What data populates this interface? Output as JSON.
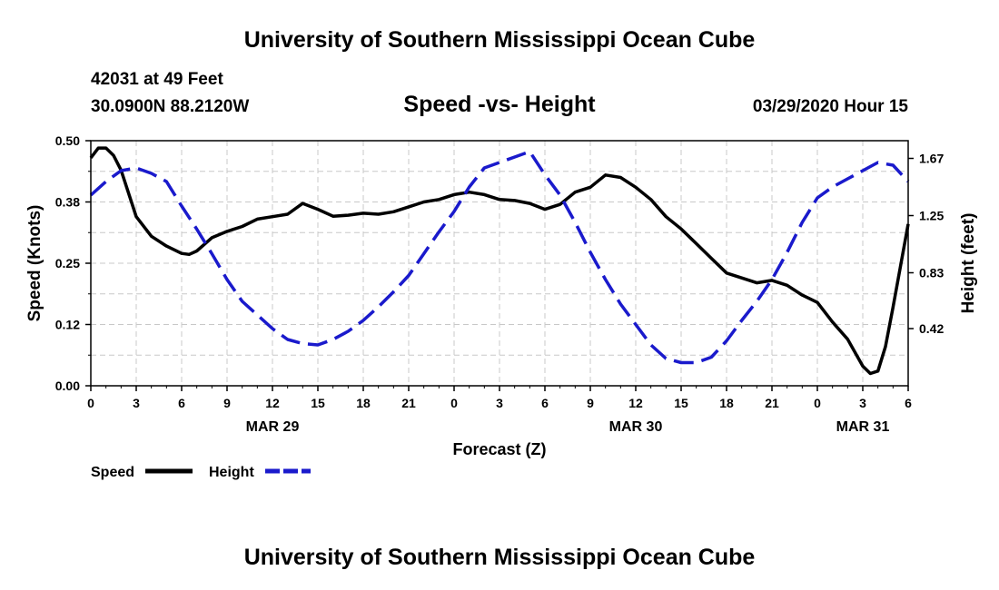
{
  "page": {
    "title_top": "University of Southern Mississippi Ocean Cube",
    "title_bottom": "University of Southern Mississippi Ocean Cube",
    "station": "42031 at 49 Feet",
    "coords": "30.0900N 88.2120W",
    "chart_title": "Speed -vs- Height",
    "datetime": "03/29/2020 Hour 15"
  },
  "colors": {
    "speed": "#000000",
    "height": "#1a1acc",
    "grid": "#c8c8c8"
  },
  "chart_data": {
    "type": "line",
    "title": "Speed -vs- Height",
    "xlabel": "Forecast (Z)",
    "ylabel": "Speed (Knots)",
    "y2label": "Height (feet)",
    "xlim": [
      0,
      54
    ],
    "ylim": [
      0,
      0.5
    ],
    "y2lim": [
      0,
      1.8
    ],
    "x_ticks": [
      0,
      3,
      6,
      9,
      12,
      15,
      18,
      21,
      24,
      27,
      30,
      33,
      36,
      39,
      42,
      45,
      48,
      51,
      54
    ],
    "x_tick_labels": [
      "0",
      "3",
      "6",
      "9",
      "12",
      "15",
      "18",
      "21",
      "0",
      "3",
      "6",
      "9",
      "12",
      "15",
      "18",
      "21",
      "0",
      "3",
      "6"
    ],
    "date_labels": [
      {
        "x": 12,
        "text": "MAR 29"
      },
      {
        "x": 36,
        "text": "MAR 30"
      },
      {
        "x": 51,
        "text": "MAR 31"
      }
    ],
    "y_ticks": [
      0.0,
      0.125,
      0.25,
      0.375,
      0.5
    ],
    "y_tick_labels": [
      "0.00",
      "0.12",
      "0.25",
      "0.38",
      "0.50"
    ],
    "y2_ticks": [
      0.42,
      0.83,
      1.25,
      1.67
    ],
    "y2_tick_labels": [
      "0.42",
      "0.83",
      "1.25",
      "1.67"
    ],
    "grid": true,
    "legend": {
      "position": "bottom-left",
      "entries": [
        "Speed",
        "Height"
      ]
    },
    "series": [
      {
        "name": "Speed",
        "axis": "left",
        "style": "solid",
        "x": [
          0,
          0.5,
          1,
          1.5,
          2,
          3,
          4,
          5,
          6,
          6.5,
          7,
          8,
          9,
          10,
          11,
          12,
          13,
          14,
          15,
          16,
          17,
          18,
          19,
          20,
          21,
          22,
          23,
          24,
          25,
          26,
          27,
          28,
          29,
          30,
          31,
          32,
          33,
          34,
          35,
          36,
          37,
          38,
          39,
          40,
          41,
          42,
          43,
          44,
          45,
          46,
          47,
          48,
          49,
          50,
          51,
          51.5,
          52,
          52.5,
          53,
          54
        ],
        "values": [
          0.465,
          0.485,
          0.485,
          0.47,
          0.44,
          0.345,
          0.305,
          0.285,
          0.27,
          0.268,
          0.275,
          0.302,
          0.315,
          0.325,
          0.34,
          0.345,
          0.35,
          0.372,
          0.36,
          0.346,
          0.348,
          0.352,
          0.35,
          0.355,
          0.365,
          0.375,
          0.38,
          0.39,
          0.395,
          0.39,
          0.38,
          0.378,
          0.372,
          0.36,
          0.37,
          0.395,
          0.405,
          0.43,
          0.425,
          0.405,
          0.38,
          0.345,
          0.32,
          0.29,
          0.26,
          0.23,
          0.22,
          0.21,
          0.215,
          0.205,
          0.185,
          0.17,
          0.13,
          0.095,
          0.04,
          0.025,
          0.03,
          0.08,
          0.16,
          0.33
        ]
      },
      {
        "name": "Height",
        "axis": "right",
        "style": "dashed",
        "x": [
          0,
          1,
          2,
          3,
          4,
          5,
          6,
          7,
          8,
          9,
          10,
          11,
          12,
          13,
          14,
          15,
          16,
          17,
          18,
          19,
          20,
          21,
          22,
          23,
          24,
          25,
          26,
          27,
          28,
          29,
          30,
          31,
          32,
          33,
          34,
          35,
          36,
          37,
          38,
          39,
          40,
          41,
          42,
          43,
          44,
          45,
          46,
          47,
          48,
          49,
          50,
          51,
          52,
          53,
          54
        ],
        "values": [
          1.4,
          1.5,
          1.58,
          1.6,
          1.56,
          1.5,
          1.32,
          1.15,
          0.97,
          0.78,
          0.62,
          0.52,
          0.42,
          0.34,
          0.31,
          0.3,
          0.34,
          0.4,
          0.48,
          0.58,
          0.69,
          0.81,
          0.97,
          1.13,
          1.28,
          1.46,
          1.6,
          1.64,
          1.68,
          1.72,
          1.55,
          1.4,
          1.2,
          0.98,
          0.78,
          0.6,
          0.45,
          0.3,
          0.2,
          0.17,
          0.17,
          0.21,
          0.33,
          0.48,
          0.62,
          0.78,
          0.98,
          1.2,
          1.38,
          1.46,
          1.52,
          1.58,
          1.64,
          1.62,
          1.5
        ]
      }
    ]
  }
}
